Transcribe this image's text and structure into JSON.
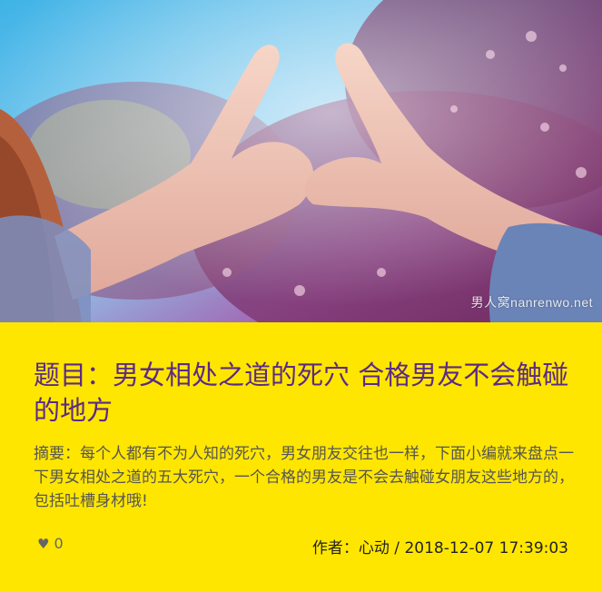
{
  "hero": {
    "alt": "两只手比出爱心手势，背景为蓝天和紫色花树",
    "watermark": "男人窝nanrenwo.net"
  },
  "article": {
    "title": "题目：男女相处之道的死穴 合格男友不会触碰的地方",
    "summary": "摘要：每个人都有不为人知的死穴，男女朋友交往也一样，下面小编就来盘点一下男女相处之道的五大死穴，一个合格的男友是不会去触碰女朋友这些地方的，包括吐槽身材哦!",
    "likes": "0",
    "author_label": "作者：",
    "author": "心动",
    "separator": " / ",
    "date": "2018-12-07 17:39:03"
  },
  "colors": {
    "panel_bg": "#ffe600",
    "title": "#5b2a86",
    "summary": "#555555"
  },
  "icons": {
    "like": "heart-icon"
  }
}
